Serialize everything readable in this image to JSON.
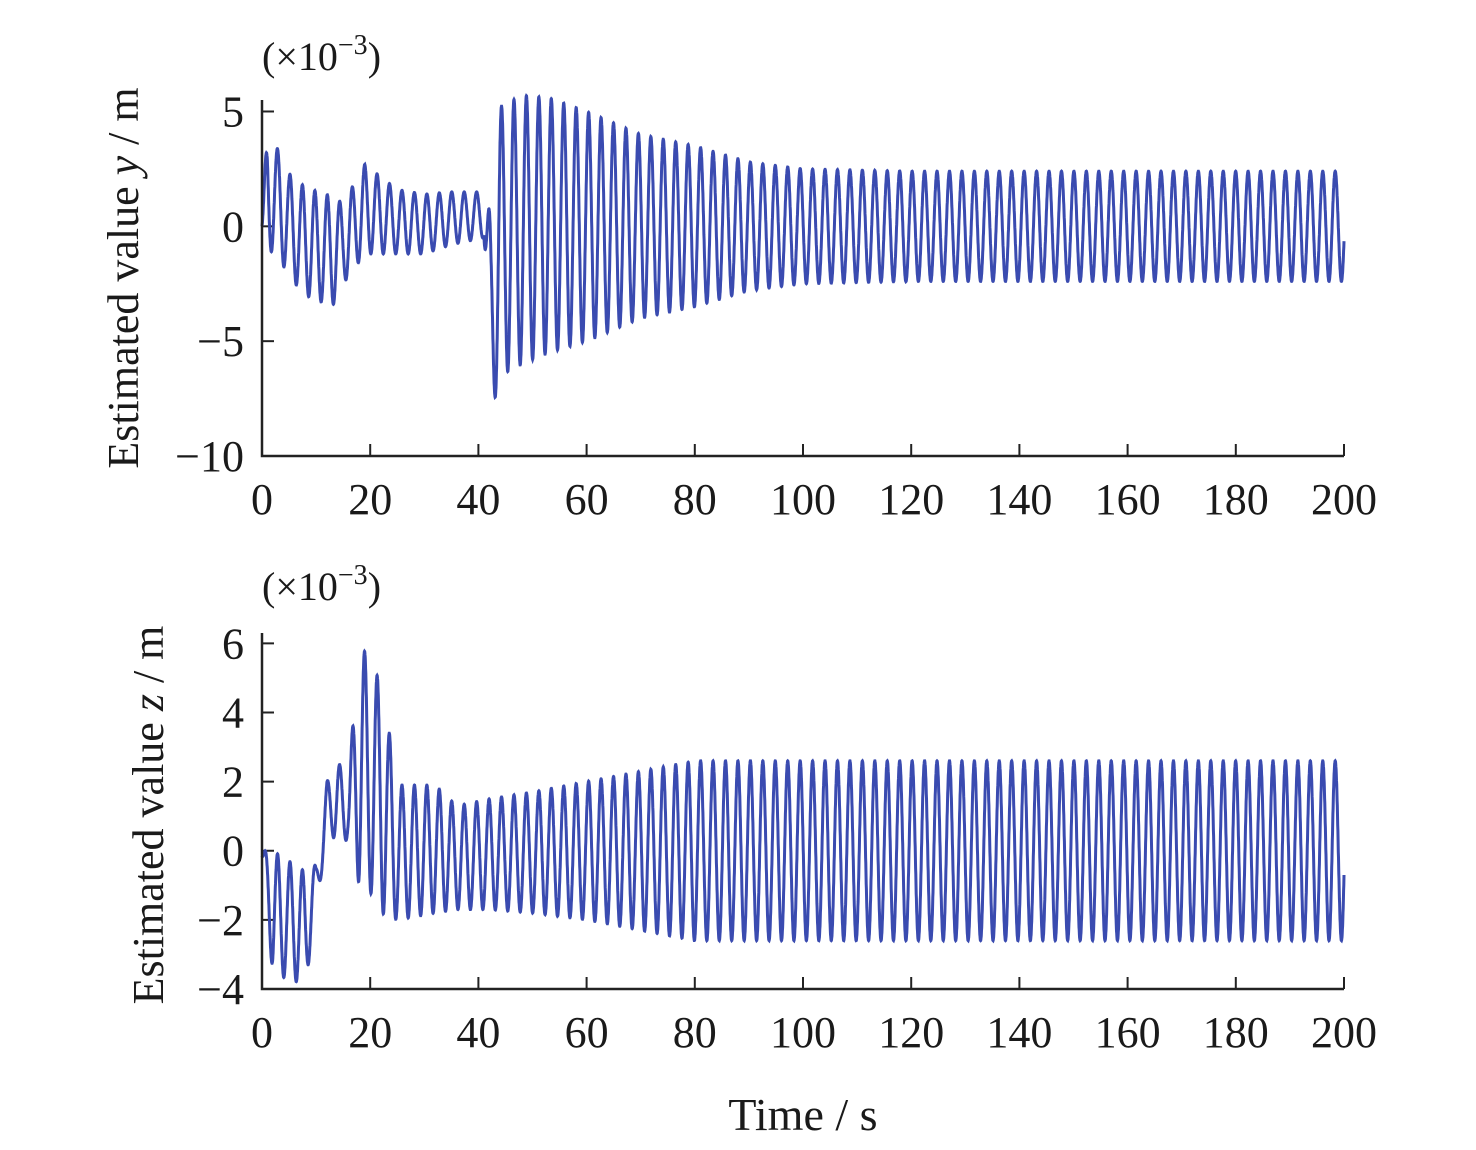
{
  "chart_data": [
    {
      "type": "line",
      "title": "",
      "xlabel": "",
      "ylabel_prefix": "Estimated value ",
      "ylabel_var": "y",
      "ylabel_suffix": " / m",
      "scale_label": "(×10",
      "scale_exp": "−3",
      "scale_close": ")",
      "xlim": [
        0,
        200
      ],
      "ylim": [
        -10,
        5.5
      ],
      "x_ticks": [
        0,
        20,
        40,
        60,
        80,
        100,
        120,
        140,
        160,
        180,
        200
      ],
      "x_tick_labels": [
        "0",
        "20",
        "40",
        "60",
        "80",
        "100",
        "120",
        "140",
        "160",
        "180",
        "200"
      ],
      "y_ticks": [
        -10,
        -5,
        0,
        5
      ],
      "y_tick_labels": [
        "−10",
        "−5",
        "0",
        "5"
      ],
      "grid": false,
      "line_color": "#3a4bb0",
      "period_s": 2.3,
      "series": [
        {
          "envelope": [
            {
              "t": 0,
              "upper": 0.0,
              "lower": 0.0
            },
            {
              "t": 1,
              "upper": 4.5,
              "lower": -1.0
            },
            {
              "t": 3,
              "upper": 3.3,
              "lower": -1.3
            },
            {
              "t": 5,
              "upper": 2.3,
              "lower": -2.2
            },
            {
              "t": 8,
              "upper": 1.7,
              "lower": -3.0
            },
            {
              "t": 13,
              "upper": 1.3,
              "lower": -3.5
            },
            {
              "t": 15,
              "upper": 1.0,
              "lower": -2.5
            },
            {
              "t": 19,
              "upper": 2.7,
              "lower": -1.2
            },
            {
              "t": 25,
              "upper": 1.6,
              "lower": -1.2
            },
            {
              "t": 30,
              "upper": 1.4,
              "lower": -1.2
            },
            {
              "t": 35,
              "upper": 1.5,
              "lower": -0.8
            },
            {
              "t": 41,
              "upper": 1.5,
              "lower": -0.5
            },
            {
              "t": 42.3,
              "upper": 0.5,
              "lower": -8.3
            },
            {
              "t": 44,
              "upper": 5.2,
              "lower": -6.5
            },
            {
              "t": 48,
              "upper": 5.7,
              "lower": -6.0
            },
            {
              "t": 53,
              "upper": 5.6,
              "lower": -5.5
            },
            {
              "t": 60,
              "upper": 5.0,
              "lower": -5.0
            },
            {
              "t": 70,
              "upper": 4.0,
              "lower": -4.0
            },
            {
              "t": 80,
              "upper": 3.5,
              "lower": -3.5
            },
            {
              "t": 90,
              "upper": 2.8,
              "lower": -2.8
            },
            {
              "t": 100,
              "upper": 2.5,
              "lower": -2.5
            },
            {
              "t": 120,
              "upper": 2.4,
              "lower": -2.4
            },
            {
              "t": 200,
              "upper": 2.4,
              "lower": -2.4
            }
          ]
        }
      ]
    },
    {
      "type": "line",
      "title": "",
      "xlabel": "Time / s",
      "ylabel_prefix": "Estimated value ",
      "ylabel_var": "z",
      "ylabel_suffix": " / m",
      "scale_label": "(×10",
      "scale_exp": "−3",
      "scale_close": ")",
      "xlim": [
        0,
        200
      ],
      "ylim": [
        -4,
        6.3
      ],
      "x_ticks": [
        0,
        20,
        40,
        60,
        80,
        100,
        120,
        140,
        160,
        180,
        200
      ],
      "x_tick_labels": [
        "0",
        "20",
        "40",
        "60",
        "80",
        "100",
        "120",
        "140",
        "160",
        "180",
        "200"
      ],
      "y_ticks": [
        -4,
        -2,
        0,
        2,
        4,
        6
      ],
      "y_tick_labels": [
        "−4",
        "−2",
        "0",
        "2",
        "4",
        "6"
      ],
      "grid": false,
      "line_color": "#3a4bb0",
      "period_s": 2.3,
      "series": [
        {
          "envelope": [
            {
              "t": 0,
              "upper": 0.0,
              "lower": -0.3
            },
            {
              "t": 2,
              "upper": 0.0,
              "lower": -3.6
            },
            {
              "t": 5,
              "upper": -0.3,
              "lower": -3.7
            },
            {
              "t": 8,
              "upper": -0.6,
              "lower": -3.9
            },
            {
              "t": 10,
              "upper": -0.4,
              "lower": -1.8
            },
            {
              "t": 12,
              "upper": 2.0,
              "lower": 0.5
            },
            {
              "t": 14,
              "upper": 2.6,
              "lower": 0.3
            },
            {
              "t": 16,
              "upper": 2.0,
              "lower": 0.3
            },
            {
              "t": 18,
              "upper": 6.3,
              "lower": -1.0
            },
            {
              "t": 20,
              "upper": 5.2,
              "lower": -1.2
            },
            {
              "t": 22,
              "upper": 5.0,
              "lower": -1.8
            },
            {
              "t": 25,
              "upper": 1.9,
              "lower": -2.0
            },
            {
              "t": 32,
              "upper": 1.9,
              "lower": -1.8
            },
            {
              "t": 36,
              "upper": 1.3,
              "lower": -1.7
            },
            {
              "t": 42,
              "upper": 1.5,
              "lower": -1.7
            },
            {
              "t": 50,
              "upper": 1.7,
              "lower": -1.8
            },
            {
              "t": 60,
              "upper": 2.0,
              "lower": -2.0
            },
            {
              "t": 70,
              "upper": 2.3,
              "lower": -2.3
            },
            {
              "t": 80,
              "upper": 2.6,
              "lower": -2.6
            },
            {
              "t": 140,
              "upper": 2.6,
              "lower": -2.6
            },
            {
              "t": 200,
              "upper": 2.6,
              "lower": -2.6
            }
          ]
        }
      ]
    }
  ]
}
